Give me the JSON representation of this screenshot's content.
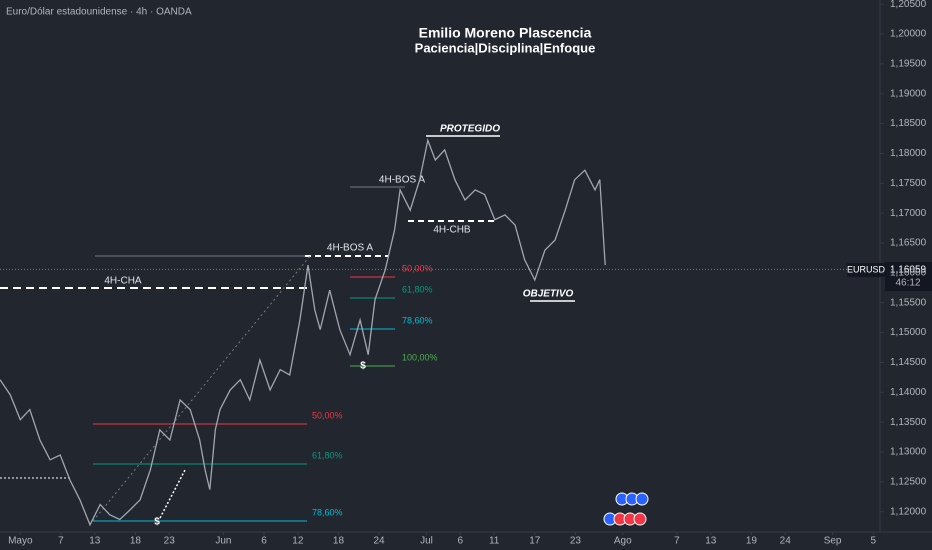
{
  "chart_data": {
    "type": "line",
    "header": "Euro/Dólar estadounidense · 4h · OANDA",
    "title": "Emilio Moreno Plascencia",
    "subtitle": "Paciencia|Disciplina|Enfoque",
    "annotations": [
      "PROTEGIDO",
      "4H-BOS A",
      "4H-BOS A",
      "4H-CHB",
      "4H-CHA",
      "OBJETIVO",
      "50,00%",
      "61,80%",
      "78,60%",
      "100,00%",
      "50,00%",
      "61,80%",
      "78,60%",
      "$",
      "$"
    ],
    "symbol": "EURUSD",
    "last_price": {
      "value": 1.16059,
      "label": "1,16059"
    },
    "countdown": "46:12",
    "color": "#a3a6af",
    "grid": false,
    "x": [
      0,
      1.5,
      3,
      4.4,
      5.9,
      7.4,
      8.9,
      10.3,
      11.8,
      13.3,
      14.8,
      16.2,
      17.7,
      19.2,
      20.7,
      22.2,
      23.6,
      25.1,
      26.6,
      28.1,
      29.5,
      30.3,
      31,
      31.8,
      32.5,
      34,
      35.5,
      36.9,
      38.4,
      39.9,
      41.4,
      42.8,
      44.3,
      45.5,
      46.5,
      47.3,
      48.7,
      50.2,
      51.7,
      53.2,
      54.4,
      55.4,
      56.9,
      58.3,
      59.1,
      60.6,
      62,
      63.2,
      64.3,
      65.7,
      67.2,
      68.7,
      70.2,
      71.6,
      73.1,
      74.6,
      76.1,
      77.5,
      79,
      80.5,
      82,
      83.5,
      84.9,
      86.4,
      87.9,
      88.6,
      89.4
    ],
    "values": [
      1.1421,
      1.1396,
      1.1354,
      1.1371,
      1.132,
      1.1287,
      1.1295,
      1.1254,
      1.122,
      1.1178,
      1.1212,
      1.1195,
      1.1187,
      1.1203,
      1.122,
      1.127,
      1.1337,
      1.132,
      1.1387,
      1.1371,
      1.132,
      1.127,
      1.1237,
      1.1337,
      1.1371,
      1.1404,
      1.1421,
      1.1387,
      1.1454,
      1.1404,
      1.1438,
      1.1429,
      1.1521,
      1.1613,
      1.1538,
      1.1505,
      1.1571,
      1.1505,
      1.1463,
      1.1521,
      1.1463,
      1.1555,
      1.1605,
      1.1672,
      1.1739,
      1.1705,
      1.1756,
      1.1822,
      1.1789,
      1.1806,
      1.1756,
      1.1722,
      1.1739,
      1.1731,
      1.1689,
      1.1697,
      1.168,
      1.1622,
      1.1588,
      1.1638,
      1.1655,
      1.1705,
      1.1756,
      1.1772,
      1.1739,
      1.1756,
      1.1613
    ],
    "xlim": [
      0,
      130
    ],
    "xticks": [
      {
        "value": 3,
        "label": "Mayo"
      },
      {
        "value": 9,
        "label": "7"
      },
      {
        "value": 14,
        "label": "13"
      },
      {
        "value": 20,
        "label": "18"
      },
      {
        "value": 25,
        "label": "23"
      },
      {
        "value": 33,
        "label": "Jun"
      },
      {
        "value": 39,
        "label": "6"
      },
      {
        "value": 44,
        "label": "12"
      },
      {
        "value": 50,
        "label": "18"
      },
      {
        "value": 56,
        "label": "24"
      },
      {
        "value": 63,
        "label": "Jul"
      },
      {
        "value": 68,
        "label": "6"
      },
      {
        "value": 73,
        "label": "11"
      },
      {
        "value": 79,
        "label": "17"
      },
      {
        "value": 85,
        "label": "23"
      },
      {
        "value": 92,
        "label": "Ago"
      },
      {
        "value": 100,
        "label": "7"
      },
      {
        "value": 105,
        "label": "13"
      },
      {
        "value": 111,
        "label": "19"
      },
      {
        "value": 116,
        "label": "24"
      },
      {
        "value": 123,
        "label": "Sep"
      },
      {
        "value": 129,
        "label": "5"
      }
    ],
    "ylim": [
      1.1166,
      1.2057
    ],
    "yticks": [
      {
        "value": 1.12,
        "label": "1,12000"
      },
      {
        "value": 1.125,
        "label": "1,12500"
      },
      {
        "value": 1.13,
        "label": "1,13000"
      },
      {
        "value": 1.135,
        "label": "1,13500"
      },
      {
        "value": 1.14,
        "label": "1,14000"
      },
      {
        "value": 1.145,
        "label": "1,14500"
      },
      {
        "value": 1.15,
        "label": "1,15000"
      },
      {
        "value": 1.155,
        "label": "1,15500"
      },
      {
        "value": 1.16,
        "label": "1,16000"
      },
      {
        "value": 1.165,
        "label": "1,16500"
      },
      {
        "value": 1.17,
        "label": "1,17000"
      },
      {
        "value": 1.175,
        "label": "1,17500"
      },
      {
        "value": 1.18,
        "label": "1,18000"
      },
      {
        "value": 1.185,
        "label": "1,18500"
      },
      {
        "value": 1.19,
        "label": "1,19000"
      },
      {
        "value": 1.195,
        "label": "1,19500"
      },
      {
        "value": 1.2,
        "label": "1,20000"
      },
      {
        "value": 1.205,
        "label": "1,20500"
      }
    ]
  }
}
